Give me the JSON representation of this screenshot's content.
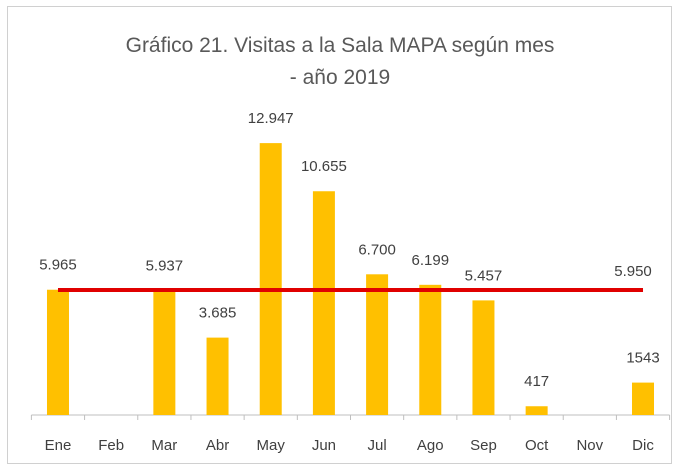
{
  "chart_data": {
    "type": "bar",
    "title": "Gráfico 21. Visitas a la Sala MAPA según mes - año 2019",
    "categories": [
      "Ene",
      "Feb",
      "Mar",
      "Abr",
      "May",
      "Jun",
      "Jul",
      "Ago",
      "Sep",
      "Oct",
      "Nov",
      "Dic"
    ],
    "values": [
      5965,
      null,
      5937,
      3685,
      12947,
      10655,
      6700,
      6199,
      5457,
      417,
      null,
      1543
    ],
    "value_labels": [
      "5.965",
      null,
      "5.937",
      "3.685",
      "12.947",
      "10.655",
      "6.700",
      "6.199",
      "5.457",
      "417",
      null,
      "1543"
    ],
    "color": "#ffc000",
    "ylim": [
      0,
      14000
    ],
    "average": 5950,
    "average_label": "5.950",
    "average_color": "#e00000"
  }
}
